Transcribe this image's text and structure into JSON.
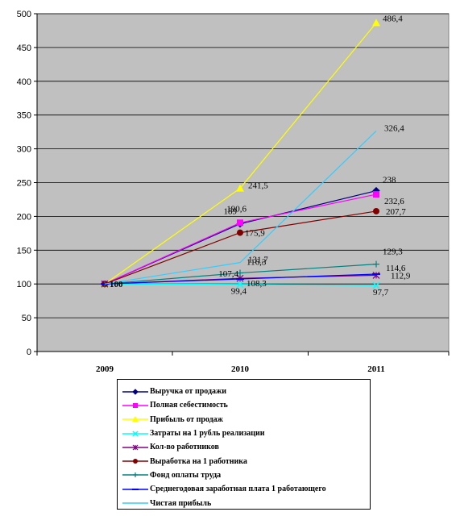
{
  "chart_data": {
    "type": "line",
    "categories": [
      "2009",
      "2010",
      "2011"
    ],
    "ylim": [
      0,
      500
    ],
    "yticks": [
      "0",
      "50",
      "100",
      "150",
      "200",
      "250",
      "300",
      "350",
      "400",
      "450",
      "500"
    ],
    "grid": true,
    "legend_position": "bottom",
    "series": [
      {
        "name": "Выручка от продажи",
        "values": [
          100,
          189,
          238
        ],
        "labels": [
          "",
          "189",
          "238"
        ],
        "color": "#000080",
        "marker": "diamond"
      },
      {
        "name": "Полная себестимость",
        "values": [
          100,
          190.6,
          232.6
        ],
        "labels": [
          "",
          "190,6",
          "232,6"
        ],
        "color": "#ff00ff",
        "marker": "square"
      },
      {
        "name": "Прибыль от продаж",
        "values": [
          100,
          241.5,
          486.4
        ],
        "labels": [
          "",
          "241,5",
          "486,4"
        ],
        "color": "#ffff00",
        "marker": "triangle"
      },
      {
        "name": "Затраты на 1 рубль реализации",
        "values": [
          100,
          99.4,
          97.7
        ],
        "labels": [
          "",
          "99,4",
          "97,7"
        ],
        "color": "#00ffff",
        "marker": "x"
      },
      {
        "name": "Кол-во работников",
        "values": [
          100,
          108.3,
          112.9
        ],
        "labels": [
          "",
          "108,3",
          "112,9"
        ],
        "color": "#800080",
        "marker": "star"
      },
      {
        "name": "Выработка на 1 работника",
        "values": [
          100,
          175.9,
          207.7
        ],
        "labels": [
          "",
          "175,9",
          "207,7"
        ],
        "color": "#800000",
        "marker": "circle"
      },
      {
        "name": "Фонд оплаты труда",
        "values": [
          100,
          116.3,
          129.3
        ],
        "labels": [
          "",
          "116,3",
          "129,3"
        ],
        "color": "#008080",
        "marker": "plus"
      },
      {
        "name": "Среднегодовая заработная плата 1 работающего",
        "values": [
          100,
          107.4,
          114.6
        ],
        "labels": [
          "100",
          "107,4",
          "114,6"
        ],
        "color": "#0000ff",
        "marker": "dash"
      },
      {
        "name": "Чистая прибыль",
        "values": [
          100,
          131.7,
          326.4
        ],
        "labels": [
          "",
          "131,7",
          "326,4"
        ],
        "color": "#33ccff",
        "marker": "none"
      }
    ]
  }
}
